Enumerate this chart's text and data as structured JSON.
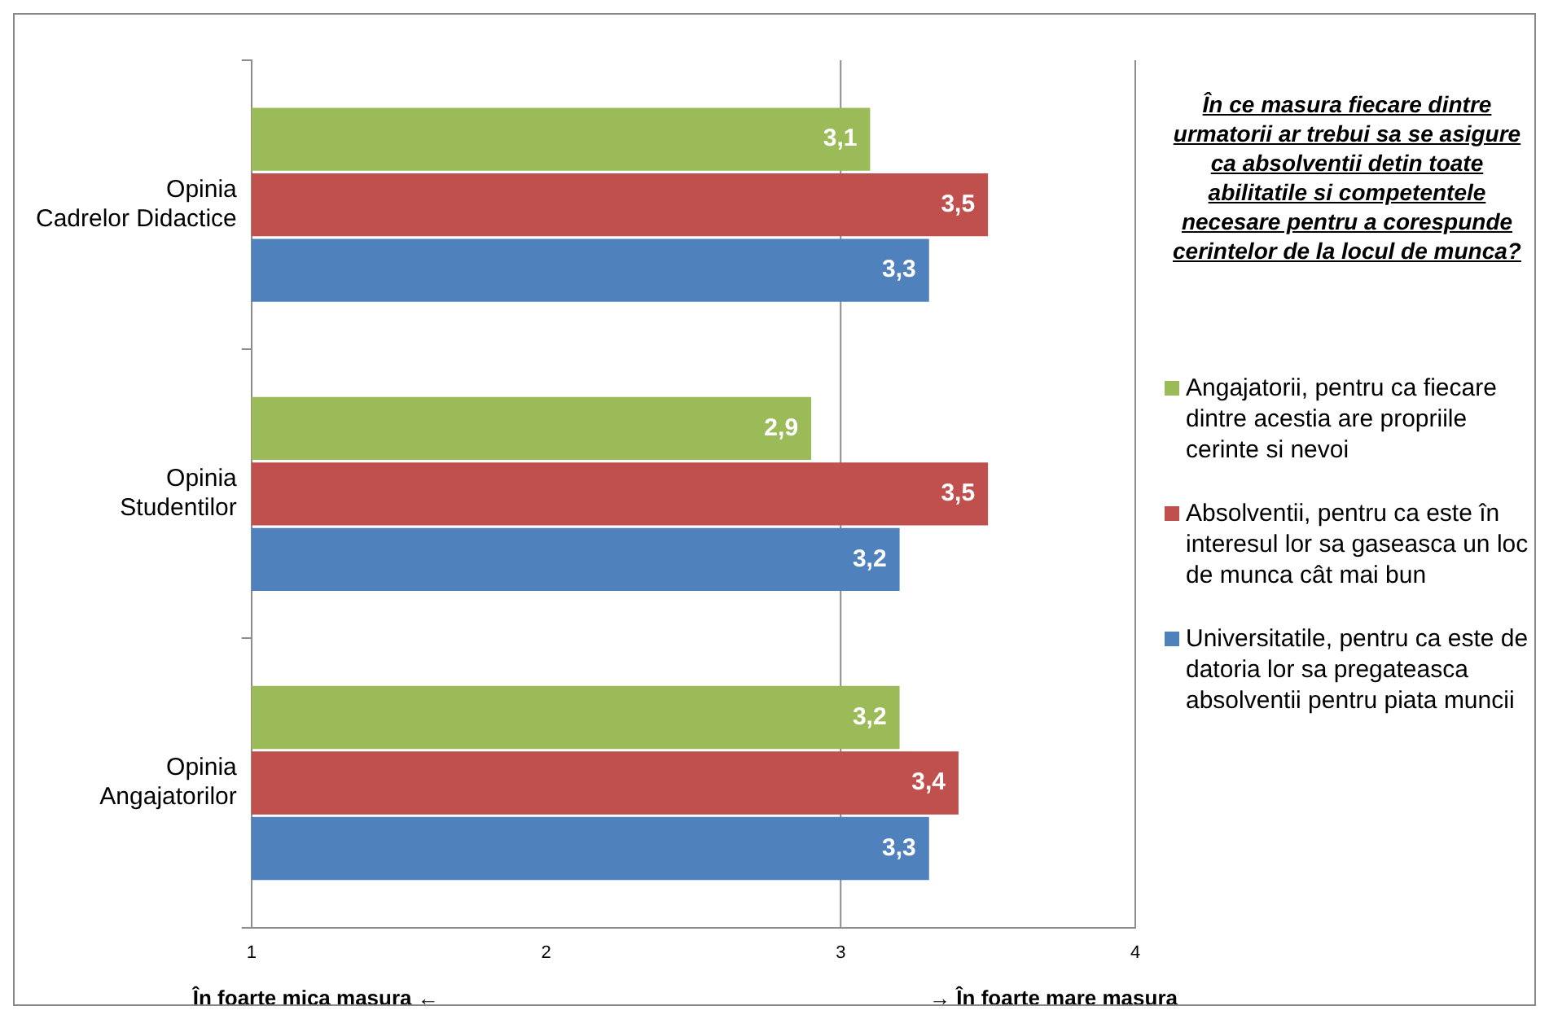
{
  "chart_data": {
    "type": "bar",
    "orientation": "horizontal",
    "categories": [
      "Opinia Cadrelor Didactice",
      "Opinia Studentilor",
      "Opinia Angajatorilor"
    ],
    "series": [
      {
        "name": "Angajatorii, pentru ca fiecare dintre acestia are propriile cerinte si nevoi",
        "color": "#9bbb59",
        "values": [
          3.1,
          2.9,
          3.2
        ],
        "value_labels": [
          "3,1",
          "2,9",
          "3,2"
        ]
      },
      {
        "name": "Absolventii, pentru ca este în interesul lor sa gaseasca un loc de munca cât mai bun",
        "color": "#c0504d",
        "values": [
          3.5,
          3.5,
          3.4
        ],
        "value_labels": [
          "3,5",
          "3,5",
          "3,4"
        ]
      },
      {
        "name": "Universitatile, pentru ca este de datoria lor sa pregateasca absolventii pentru piata muncii",
        "color": "#4f81bd",
        "values": [
          3.3,
          3.2,
          3.3
        ],
        "value_labels": [
          "3,3",
          "3,2",
          "3,3"
        ]
      }
    ],
    "xlim": [
      1,
      4
    ],
    "xticks": [
      1,
      2,
      3,
      4
    ],
    "grid": false,
    "legend": "right",
    "legend_title": "În ce masura fiecare dintre urmatorii ar trebui sa se asigure ca absolventii detin toate abilitatile si competentele necesare pentru a corespunde cerintelor de la locul de munca?",
    "ref_lines": [
      {
        "axis": "x",
        "value": 3,
        "color": "#8c8c8c"
      }
    ],
    "annotations": [
      "În foarte mica masura ←",
      "→ În foarte mare masura"
    ]
  }
}
